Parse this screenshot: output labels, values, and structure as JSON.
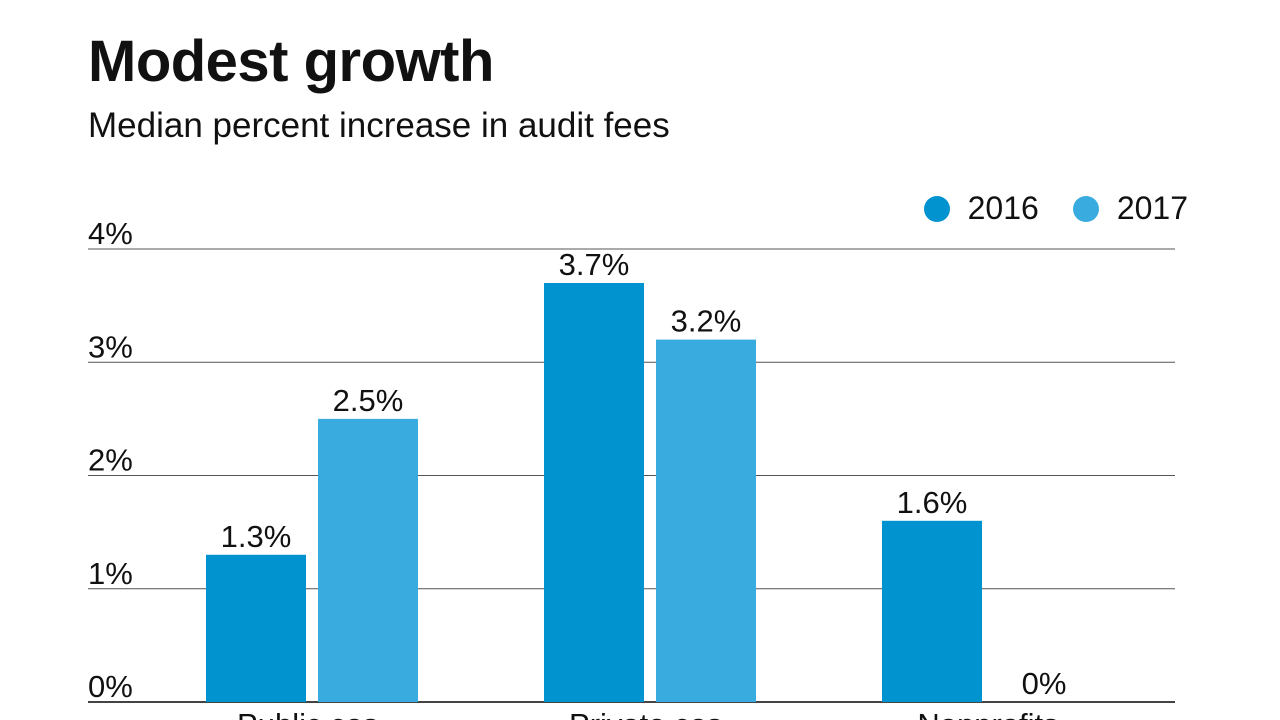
{
  "chart_data": {
    "type": "bar",
    "title": "Modest growth",
    "subtitle": "Median percent increase in audit fees",
    "categories": [
      "Public cos.",
      "Private cos.",
      "Nonprofits"
    ],
    "series": [
      {
        "name": "2016",
        "color": "#0093d0",
        "values": [
          1.3,
          3.7,
          1.6
        ],
        "labels": [
          "1.3%",
          "3.7%",
          "1.6%"
        ]
      },
      {
        "name": "2017",
        "color": "#3aabde",
        "values": [
          2.5,
          3.2,
          0
        ],
        "labels": [
          "2.5%",
          "3.2%",
          "0%"
        ]
      }
    ],
    "ylim": [
      0,
      4
    ],
    "yticks": [
      0,
      1,
      2,
      3,
      4
    ],
    "ytick_labels": [
      "0%",
      "1%",
      "2%",
      "3%",
      "4%"
    ],
    "grid": true,
    "legend": "top-right",
    "xlabel": "",
    "ylabel": ""
  }
}
